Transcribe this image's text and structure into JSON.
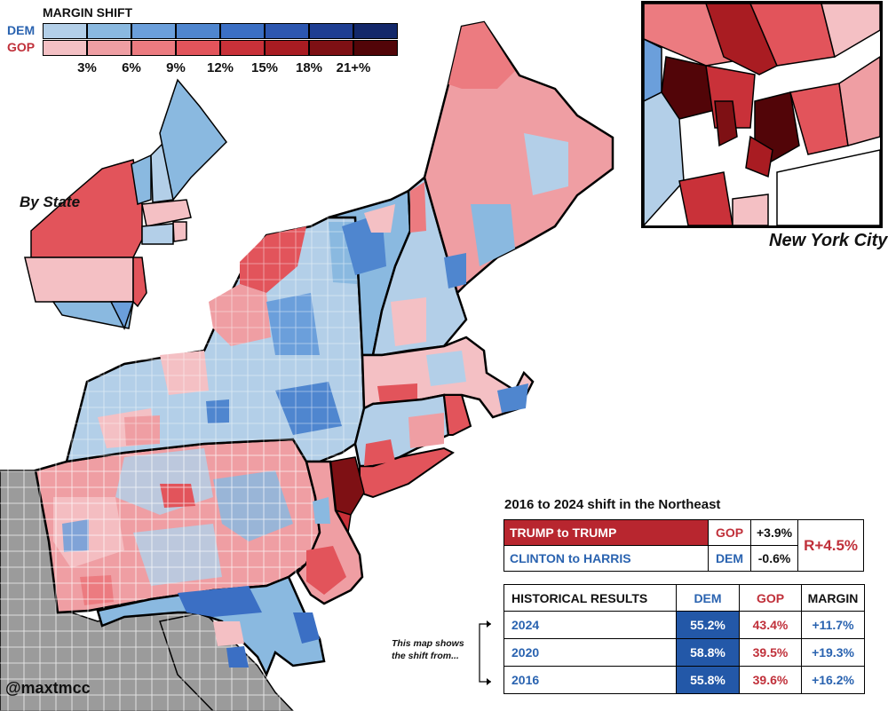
{
  "legend": {
    "title": "MARGIN SHIFT",
    "dem_label": "DEM",
    "gop_label": "GOP",
    "ticks": [
      "3%",
      "6%",
      "9%",
      "12%",
      "15%",
      "18%",
      "21+%"
    ],
    "dem_colors": [
      "#b3cfe8",
      "#8ab9e0",
      "#6b9fdb",
      "#4f86cf",
      "#3b6fc4",
      "#2d57b0",
      "#1f3e92",
      "#13286a"
    ],
    "gop_colors": [
      "#f4c0c4",
      "#ef9ea3",
      "#ec7b80",
      "#e2545b",
      "#c93139",
      "#a91c22",
      "#7e1014",
      "#520508"
    ]
  },
  "labels": {
    "by_state": "By State",
    "nyc": "New York City",
    "credit": "@maxtmcc",
    "note": "This map shows the shift from..."
  },
  "shift": {
    "title": "2016 to 2024 shift in the Northeast",
    "rows": [
      {
        "label": "TRUMP to TRUMP",
        "party": "GOP",
        "value": "+3.9%"
      },
      {
        "label": "CLINTON to HARRIS",
        "party": "DEM",
        "value": "-0.6%"
      }
    ],
    "net": "R+4.5%"
  },
  "historical": {
    "headers": [
      "HISTORICAL RESULTS",
      "DEM",
      "GOP",
      "MARGIN"
    ],
    "rows": [
      {
        "year": "2024",
        "dem": "55.2%",
        "gop": "43.4%",
        "margin": "+11.7%"
      },
      {
        "year": "2020",
        "dem": "58.8%",
        "gop": "39.5%",
        "margin": "+19.3%"
      },
      {
        "year": "2016",
        "dem": "55.8%",
        "gop": "39.6%",
        "margin": "+16.2%"
      }
    ]
  },
  "colors": {
    "neighbor_gray": "#9b9b9b",
    "border": "#000000"
  }
}
